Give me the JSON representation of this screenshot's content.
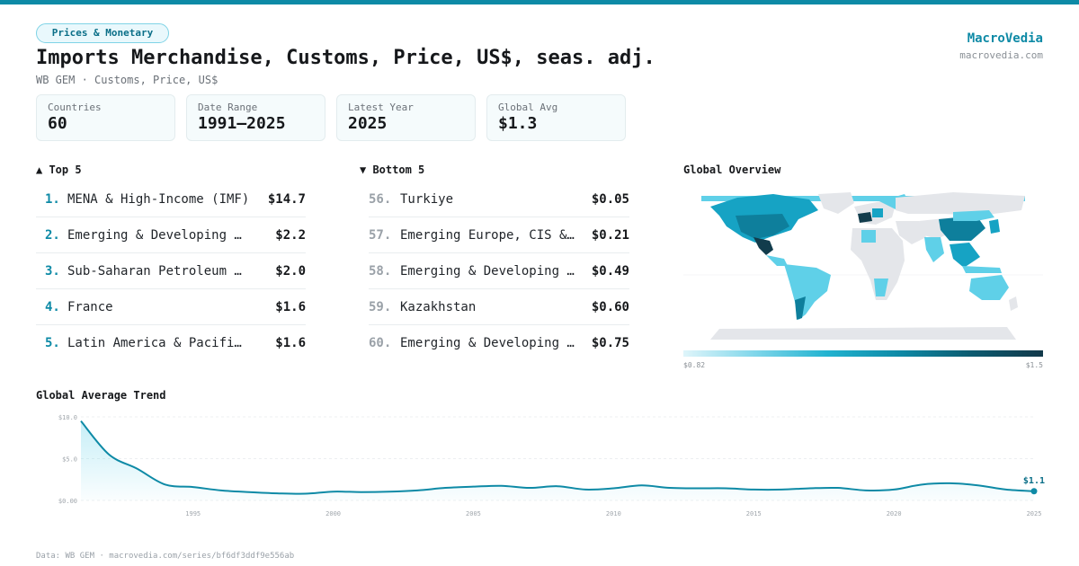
{
  "header": {
    "category": "Prices & Monetary",
    "title": "Imports Merchandise, Customs, Price, US$, seas. adj.",
    "subtitle": "WB GEM · Customs, Price, US$",
    "brand": "MacroVedia",
    "brand_url": "macrovedia.com"
  },
  "stats": [
    {
      "label": "Countries",
      "value": "60"
    },
    {
      "label": "Date Range",
      "value": "1991–2025"
    },
    {
      "label": "Latest Year",
      "value": "2025"
    },
    {
      "label": "Global Avg",
      "value": "$1.3"
    }
  ],
  "top5": {
    "title": "▲ Top 5",
    "items": [
      {
        "rank": "1.",
        "name": "MENA & High-Income (IMF)",
        "value": "$14.7"
      },
      {
        "rank": "2.",
        "name": "Emerging & Developing …",
        "value": "$2.2"
      },
      {
        "rank": "3.",
        "name": "Sub-Saharan Petroleum …",
        "value": "$2.0"
      },
      {
        "rank": "4.",
        "name": "France",
        "value": "$1.6"
      },
      {
        "rank": "5.",
        "name": "Latin America & Pacifi…",
        "value": "$1.6"
      }
    ]
  },
  "bottom5": {
    "title": "▼ Bottom 5",
    "items": [
      {
        "rank": "56.",
        "name": "Turkiye",
        "value": "$0.05"
      },
      {
        "rank": "57.",
        "name": "Emerging Europe, CIS &…",
        "value": "$0.21"
      },
      {
        "rank": "58.",
        "name": "Emerging & Developing …",
        "value": "$0.49"
      },
      {
        "rank": "59.",
        "name": "Kazakhstan",
        "value": "$0.60"
      },
      {
        "rank": "60.",
        "name": "Emerging & Developing …",
        "value": "$0.75"
      }
    ]
  },
  "map": {
    "title": "Global Overview",
    "legend_min": "$0.82",
    "legend_max": "$1.5",
    "colors": {
      "none": "#e4e6ea",
      "light": "#5fd0e8",
      "mid": "#16a3c4",
      "dark": "#0e7f9c",
      "darkest": "#123c4c"
    }
  },
  "trend": {
    "title": "Global Average Trend",
    "last_label": "$1.1"
  },
  "chart_data": {
    "type": "area",
    "title": "Global Average Trend",
    "x": [
      1991,
      1992,
      1993,
      1994,
      1995,
      1996,
      1997,
      1998,
      1999,
      2000,
      2001,
      2002,
      2003,
      2004,
      2005,
      2006,
      2007,
      2008,
      2009,
      2010,
      2011,
      2012,
      2013,
      2014,
      2015,
      2016,
      2017,
      2018,
      2019,
      2020,
      2021,
      2022,
      2023,
      2024,
      2025
    ],
    "values": [
      9.5,
      5.5,
      3.8,
      1.9,
      1.6,
      1.2,
      1.0,
      0.85,
      0.8,
      1.05,
      1.0,
      1.05,
      1.2,
      1.5,
      1.65,
      1.75,
      1.5,
      1.7,
      1.3,
      1.45,
      1.8,
      1.5,
      1.45,
      1.45,
      1.3,
      1.3,
      1.45,
      1.5,
      1.2,
      1.3,
      1.9,
      2.05,
      1.8,
      1.3,
      1.1
    ],
    "ylim": [
      0,
      10
    ],
    "y_ticks": [
      "$0.00",
      "$5.0",
      "$10.0"
    ],
    "x_ticks": [
      "1995",
      "2000",
      "2005",
      "2010",
      "2015",
      "2020",
      "2025"
    ],
    "grid": true,
    "color": "#0e8aa6"
  },
  "footer": "Data: WB GEM · macrovedia.com/series/bf6df3ddf9e556ab"
}
